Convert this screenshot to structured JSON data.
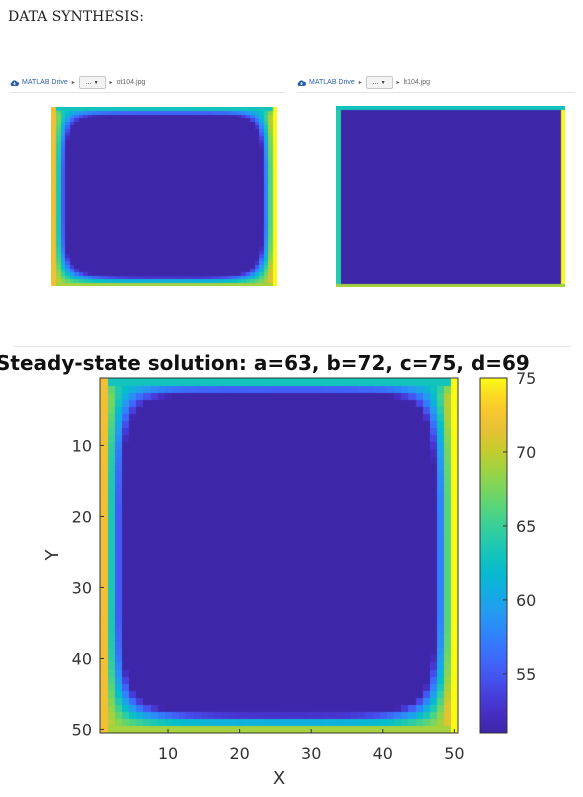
{
  "page": {
    "heading": "DATA SYNTHESIS:"
  },
  "thumbnails": [
    {
      "breadcrumb_root": "MATLAB Drive",
      "breadcrumb_menu": "...",
      "filename": "ot104.jpg",
      "pattern": "smooth"
    },
    {
      "breadcrumb_root": "MATLAB Drive",
      "breadcrumb_menu": "...",
      "filename": "lt104.jpg",
      "pattern": "flat"
    }
  ],
  "colors": {
    "parula_low": "#3e26a8",
    "parula_high": "#f9fb15"
  },
  "chart_data": {
    "type": "heatmap",
    "title": "Steady-state solution: a=63, b=72, c=75, d=69",
    "xlabel": "X",
    "ylabel": "Y",
    "xlim": [
      0.5,
      50.5
    ],
    "ylim": [
      0.5,
      50.5
    ],
    "y_direction": "reverse",
    "grid_size": [
      50,
      50
    ],
    "xticks": [
      10,
      20,
      30,
      40,
      50
    ],
    "yticks": [
      10,
      20,
      30,
      40,
      50
    ],
    "colormap": "parula",
    "clim": [
      51,
      75
    ],
    "colorbar_ticks": [
      55,
      60,
      65,
      70,
      75
    ],
    "boundary_values": {
      "a": 63,
      "b": 72,
      "c": 75,
      "d": 69
    },
    "approx_min": 51,
    "approx_min_location": [
      26,
      26
    ],
    "approx_max": 75
  }
}
